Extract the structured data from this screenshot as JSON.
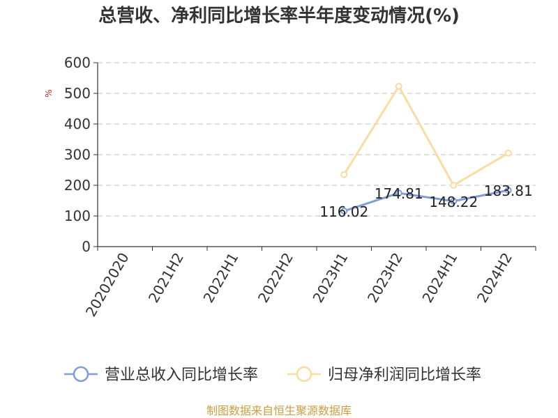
{
  "chart_data": {
    "type": "line",
    "title": "总营收、净利同比增长率半年度变动情况(%)",
    "unit": "%",
    "categories": [
      "20202020",
      "2021H2",
      "2022H1",
      "2022H2",
      "2023H1",
      "2023H2",
      "2024H1",
      "2024H2"
    ],
    "y_ticks": [
      "0",
      "100",
      "200",
      "300",
      "400",
      "500",
      "600"
    ],
    "ylim": [
      0,
      600
    ],
    "grid": true,
    "legend_position": "bottom",
    "series": [
      {
        "name": "营业总收入同比增长率",
        "color": "#7f9ed9",
        "values": [
          null,
          null,
          null,
          null,
          116.02,
          174.81,
          148.22,
          183.81
        ],
        "labels": [
          "",
          "",
          "",
          "",
          "116.02",
          "174.81",
          "148.22",
          "183.81"
        ]
      },
      {
        "name": "归母净利润同比增长率",
        "color": "#fbdb9f",
        "values": [
          null,
          null,
          null,
          null,
          235,
          523,
          200,
          305
        ],
        "labels": []
      }
    ]
  },
  "source": "制图数据来自恒生聚源数据库"
}
